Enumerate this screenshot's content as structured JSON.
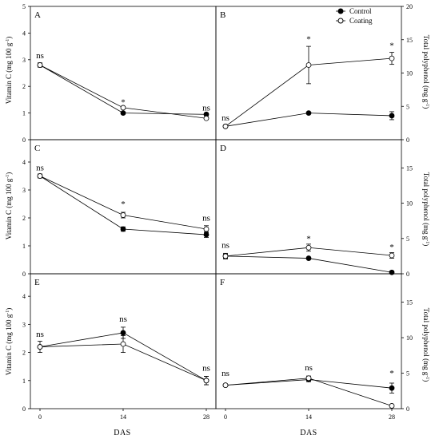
{
  "figure": {
    "x_axis_label": "DAS",
    "left_y_label": "Vitamin C (mg 100 g",
    "left_y_label_sup": "-1",
    "left_y_label_end": ")",
    "right_y_label": "Total polyphenol (mg g",
    "right_y_label_sup": "-1",
    "right_y_label_end": ")"
  },
  "legend": {
    "placement": "top-right of panel B",
    "entries": [
      {
        "label": "Control",
        "marker": "filled-circle"
      },
      {
        "label": "Coating",
        "marker": "open-circle"
      }
    ]
  },
  "chart_data": [
    {
      "panel": "A",
      "type": "line",
      "axis": "left",
      "x": [
        0,
        14,
        28
      ],
      "ylim": [
        0,
        5
      ],
      "yticks": [
        0,
        1,
        2,
        3,
        4,
        5
      ],
      "xticks": [],
      "series": [
        {
          "name": "Control",
          "values": [
            2.8,
            1.0,
            0.95
          ],
          "errors": [
            0.08,
            0.04,
            0.05
          ]
        },
        {
          "name": "Coating",
          "values": [
            2.8,
            1.2,
            0.8
          ],
          "errors": [
            0.08,
            0.04,
            0.04
          ]
        }
      ],
      "annotations": [
        {
          "x": 0,
          "text": "ns",
          "y": 3.05
        },
        {
          "x": 14,
          "text": "*",
          "y": 1.3
        },
        {
          "x": 28,
          "text": "ns",
          "y": 1.1
        }
      ]
    },
    {
      "panel": "B",
      "type": "line",
      "axis": "right",
      "x": [
        0,
        14,
        28
      ],
      "ylim": [
        0,
        20
      ],
      "yticks": [
        0,
        5,
        10,
        15,
        20
      ],
      "xticks": [],
      "series": [
        {
          "name": "Control",
          "values": [
            2.0,
            4.0,
            3.6
          ],
          "errors": [
            0.0,
            0.0,
            0.6
          ]
        },
        {
          "name": "Coating",
          "values": [
            2.0,
            11.2,
            12.2
          ],
          "errors": [
            0.0,
            2.8,
            0.9
          ]
        }
      ],
      "annotations": [
        {
          "x": 0,
          "text": "ns",
          "y": 2.9
        },
        {
          "x": 14,
          "text": "*",
          "y": 14.7
        },
        {
          "x": 28,
          "text": "*",
          "y": 13.7
        }
      ]
    },
    {
      "panel": "C",
      "type": "line",
      "axis": "left",
      "x": [
        0,
        14,
        28
      ],
      "ylim": [
        0,
        4.8
      ],
      "yticks": [
        0,
        1,
        2,
        3,
        4
      ],
      "xticks": [],
      "series": [
        {
          "name": "Control",
          "values": [
            3.5,
            1.6,
            1.4
          ],
          "errors": [
            0.07,
            0.08,
            0.1
          ]
        },
        {
          "name": "Coating",
          "values": [
            3.5,
            2.1,
            1.6
          ],
          "errors": [
            0.07,
            0.1,
            0.12
          ]
        }
      ],
      "annotations": [
        {
          "x": 0,
          "text": "ns",
          "y": 3.7
        },
        {
          "x": 14,
          "text": "*",
          "y": 2.4
        },
        {
          "x": 28,
          "text": "ns",
          "y": 1.9
        }
      ]
    },
    {
      "panel": "D",
      "type": "line",
      "axis": "right",
      "x": [
        0,
        14,
        28
      ],
      "ylim": [
        0,
        19
      ],
      "yticks": [
        0,
        5,
        10,
        15
      ],
      "xticks": [],
      "series": [
        {
          "name": "Control",
          "values": [
            2.5,
            2.2,
            0.2
          ],
          "errors": [
            0.3,
            0.0,
            0.2
          ]
        },
        {
          "name": "Coating",
          "values": [
            2.5,
            3.7,
            2.6
          ],
          "errors": [
            0.4,
            0.5,
            0.4
          ]
        }
      ],
      "annotations": [
        {
          "x": 0,
          "text": "ns",
          "y": 3.7
        },
        {
          "x": 14,
          "text": "*",
          "y": 4.6
        },
        {
          "x": 28,
          "text": "*",
          "y": 3.4
        }
      ]
    },
    {
      "panel": "E",
      "type": "line",
      "axis": "left",
      "x": [
        0,
        14,
        28
      ],
      "ylim": [
        0,
        4.8
      ],
      "yticks": [
        0,
        1,
        2,
        3,
        4
      ],
      "xticks": [
        0,
        14,
        28
      ],
      "series": [
        {
          "name": "Control",
          "values": [
            2.2,
            2.7,
            1.0
          ],
          "errors": [
            0.0,
            0.2,
            0.15
          ]
        },
        {
          "name": "Coating",
          "values": [
            2.2,
            2.3,
            1.0
          ],
          "errors": [
            0.2,
            0.3,
            0.15
          ]
        }
      ],
      "annotations": [
        {
          "x": 0,
          "text": "ns",
          "y": 2.55
        },
        {
          "x": 14,
          "text": "ns",
          "y": 3.1
        },
        {
          "x": 28,
          "text": "ns",
          "y": 1.35
        }
      ]
    },
    {
      "panel": "F",
      "type": "line",
      "axis": "right",
      "x": [
        0,
        14,
        28
      ],
      "ylim": [
        0,
        19
      ],
      "yticks": [
        0,
        5,
        10,
        15
      ],
      "xticks": [
        0,
        14,
        28
      ],
      "series": [
        {
          "name": "Control",
          "values": [
            3.3,
            4.1,
            2.9
          ],
          "errors": [
            0.0,
            0.3,
            0.7
          ]
        },
        {
          "name": "Coating",
          "values": [
            3.3,
            4.3,
            0.4
          ],
          "errors": [
            0.0,
            0.3,
            0.0
          ]
        }
      ],
      "annotations": [
        {
          "x": 0,
          "text": "ns",
          "y": 4.6
        },
        {
          "x": 14,
          "text": "ns",
          "y": 5.4
        },
        {
          "x": 28,
          "text": "*",
          "y": 4.6
        }
      ]
    }
  ]
}
